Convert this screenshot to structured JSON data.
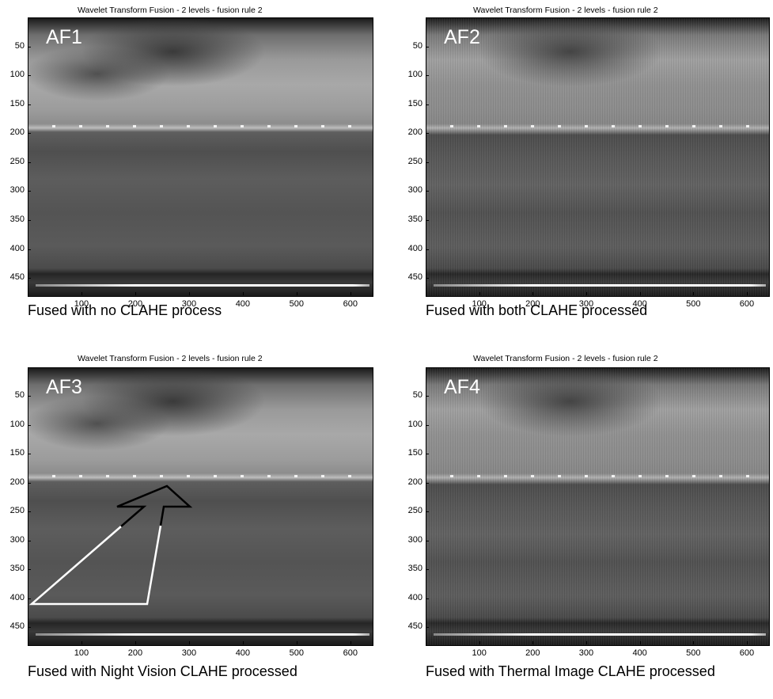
{
  "panels": [
    {
      "title": "Wavelet Transform Fusion - 2 levels - fusion rule 2",
      "label": "AF1",
      "caption": "Fused with no CLAHE process"
    },
    {
      "title": "Wavelet Transform Fusion - 2 levels - fusion rule 2",
      "label": "AF2",
      "caption": "Fused with both CLAHE processed"
    },
    {
      "title": "Wavelet Transform Fusion - 2 levels - fusion rule 2",
      "label": "AF3",
      "caption": "Fused with Night Vision CLAHE processed"
    },
    {
      "title": "Wavelet Transform Fusion - 2 levels - fusion rule 2",
      "label": "AF4",
      "caption": "Fused with Thermal Image CLAHE processed"
    }
  ],
  "axes": {
    "y_ticks": [
      "50",
      "100",
      "150",
      "200",
      "250",
      "300",
      "350",
      "400",
      "450"
    ],
    "x_ticks": [
      "100",
      "200",
      "300",
      "400",
      "500",
      "600"
    ],
    "y_values": [
      50,
      100,
      150,
      200,
      250,
      300,
      350,
      400,
      450
    ],
    "x_values": [
      100,
      200,
      300,
      400,
      500,
      600
    ],
    "x_range": [
      0,
      640
    ],
    "y_range": [
      0,
      480
    ]
  },
  "colors": {
    "arrow_outline_dark": "#000000",
    "arrow_outline_light": "#ffffff"
  }
}
